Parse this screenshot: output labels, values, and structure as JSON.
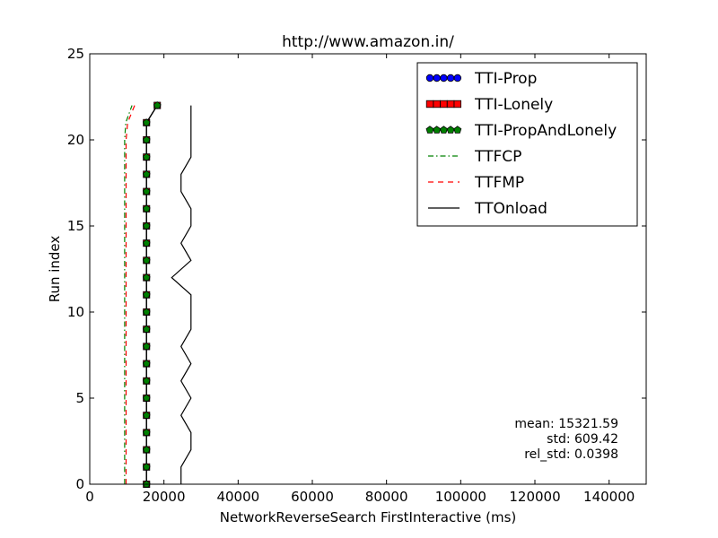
{
  "chart_data": {
    "type": "line",
    "title": "http://www.amazon.in/",
    "xlabel": "NetworkReverseSearch FirstInteractive (ms)",
    "ylabel": "Run index",
    "xlim": [
      0,
      150000
    ],
    "ylim": [
      0,
      25
    ],
    "xticks": [
      0,
      20000,
      40000,
      60000,
      80000,
      100000,
      120000,
      140000
    ],
    "yticks": [
      0,
      5,
      10,
      15,
      20,
      25
    ],
    "grid": false,
    "legend_position": "top-right",
    "series": [
      {
        "name": "TTI-Prop",
        "style": "marker-circle",
        "color": "#0000ff",
        "x": [
          15300,
          15300,
          15300,
          15300,
          15300,
          15300,
          15300,
          15300,
          15300,
          15300,
          15300,
          15300,
          15300,
          15300,
          15300,
          15300,
          15300,
          15300,
          15300,
          15300,
          15300,
          15300,
          18200
        ],
        "y": [
          0,
          1,
          2,
          3,
          4,
          5,
          6,
          7,
          8,
          9,
          10,
          11,
          12,
          13,
          14,
          15,
          16,
          17,
          18,
          19,
          20,
          21,
          22
        ]
      },
      {
        "name": "TTI-Lonely",
        "style": "marker-square",
        "color": "#ff0000",
        "x": [
          15300,
          15300,
          15300,
          15300,
          15300,
          15300,
          15300,
          15300,
          15300,
          15300,
          15300,
          15300,
          15300,
          15300,
          15300,
          15300,
          15300,
          15300,
          15300,
          15300,
          15300,
          15300,
          18200
        ],
        "y": [
          0,
          1,
          2,
          3,
          4,
          5,
          6,
          7,
          8,
          9,
          10,
          11,
          12,
          13,
          14,
          15,
          16,
          17,
          18,
          19,
          20,
          21,
          22
        ]
      },
      {
        "name": "TTI-PropAndLonely",
        "style": "marker-pentagon",
        "color": "#007f00",
        "x": [
          15300,
          15300,
          15300,
          15300,
          15300,
          15300,
          15300,
          15300,
          15300,
          15300,
          15300,
          15300,
          15300,
          15300,
          15300,
          15300,
          15300,
          15300,
          15300,
          15300,
          15300,
          15300,
          18200
        ],
        "y": [
          0,
          1,
          2,
          3,
          4,
          5,
          6,
          7,
          8,
          9,
          10,
          11,
          12,
          13,
          14,
          15,
          16,
          17,
          18,
          19,
          20,
          21,
          22
        ]
      },
      {
        "name": "TTFCP",
        "style": "dashdot",
        "color": "#008000",
        "x": [
          9400,
          9400,
          9400,
          9400,
          9400,
          9400,
          9400,
          9400,
          9400,
          9400,
          9400,
          9400,
          9400,
          9400,
          9400,
          9400,
          9400,
          9400,
          9400,
          9400,
          9400,
          9700,
          11400
        ],
        "y": [
          0,
          1,
          2,
          3,
          4,
          5,
          6,
          7,
          8,
          9,
          10,
          11,
          12,
          13,
          14,
          15,
          16,
          17,
          18,
          19,
          20,
          21,
          22
        ]
      },
      {
        "name": "TTFMP",
        "style": "dashed",
        "color": "#ff0000",
        "x": [
          9800,
          9800,
          9800,
          9800,
          9800,
          9800,
          9800,
          9800,
          9800,
          9800,
          9800,
          9800,
          9800,
          9800,
          9800,
          9800,
          9800,
          9800,
          9800,
          9800,
          9800,
          10200,
          12100
        ],
        "y": [
          0,
          1,
          2,
          3,
          4,
          5,
          6,
          7,
          8,
          9,
          10,
          11,
          12,
          13,
          14,
          15,
          16,
          17,
          18,
          19,
          20,
          21,
          22
        ]
      },
      {
        "name": "TTOnload",
        "style": "solid",
        "color": "#000000",
        "x": [
          24600,
          24600,
          27300,
          27300,
          24600,
          27300,
          24600,
          27300,
          24600,
          27300,
          27300,
          27300,
          22100,
          27300,
          24600,
          27300,
          27300,
          24600,
          24600,
          27300,
          27300,
          27300,
          27300
        ],
        "y": [
          0,
          1,
          2,
          3,
          4,
          5,
          6,
          7,
          8,
          9,
          10,
          11,
          12,
          13,
          14,
          15,
          16,
          17,
          18,
          19,
          20,
          21,
          22
        ]
      }
    ],
    "annotations": [
      "mean: 15321.59",
      "std: 609.42",
      "rel_std: 0.0398"
    ]
  }
}
